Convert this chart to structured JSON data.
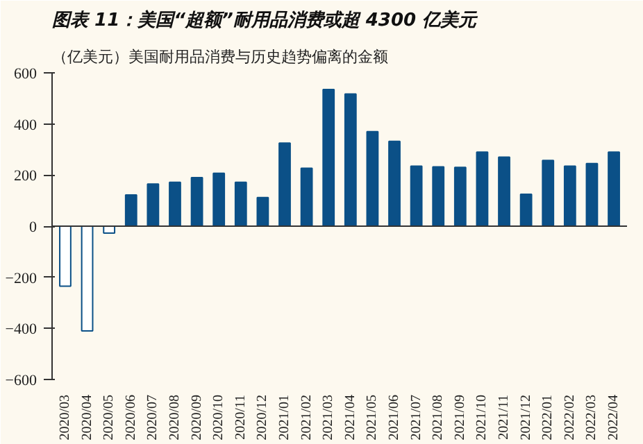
{
  "chart_data": {
    "type": "bar",
    "title": "图表 11：美国“超额”耐用品消费或超 4300 亿美元",
    "subtitle": "（亿美元）美国耐用品消费与历史趋势偏离的金额",
    "categories": [
      "2020/03",
      "2020/04",
      "2020/05",
      "2020/06",
      "2020/07",
      "2020/08",
      "2020/09",
      "2020/10",
      "2020/11",
      "2020/12",
      "2021/01",
      "2021/02",
      "2021/03",
      "2021/04",
      "2021/05",
      "2021/06",
      "2021/07",
      "2021/08",
      "2021/09",
      "2021/10",
      "2021/11",
      "2021/12",
      "2022/01",
      "2022/02",
      "2022/03",
      "2022/04"
    ],
    "series": [
      {
        "color": "#0b5087",
        "values": [
          -235,
          -410,
          -27,
          122,
          165,
          172,
          190,
          207,
          172,
          112,
          325,
          227,
          535,
          517,
          370,
          332,
          235,
          232,
          230,
          290,
          270,
          125,
          257,
          235,
          245,
          290
        ]
      }
    ],
    "colors": [
      "#ffffff",
      "#ffffff",
      "#ffffff",
      "#0b5087",
      "#0b5087",
      "#0b5087",
      "#0b5087",
      "#0b5087",
      "#0b5087",
      "#0b5087",
      "#0b5087",
      "#0b5087",
      "#0b5087",
      "#0b5087",
      "#0b5087",
      "#0b5087",
      "#0b5087",
      "#0b5087",
      "#0b5087",
      "#0b5087",
      "#0b5087",
      "#0b5087",
      "#0b5087",
      "#0b5087",
      "#0b5087",
      "#0b5087"
    ],
    "ylim": [
      -600,
      600
    ],
    "yticks": [
      -600,
      -400,
      -200,
      0,
      200,
      400,
      600
    ]
  }
}
